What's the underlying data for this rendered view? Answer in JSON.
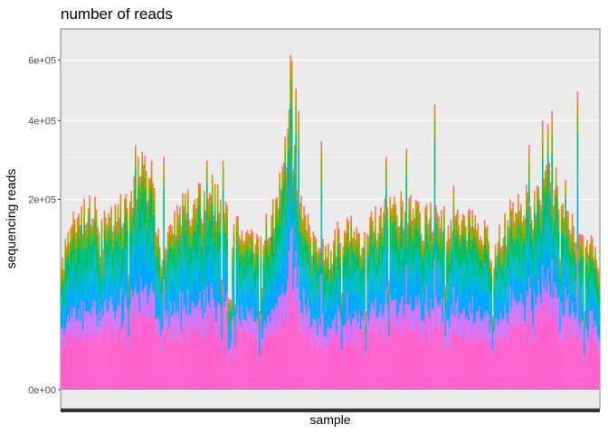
{
  "chart_data": {
    "type": "bar",
    "stacked": true,
    "title": "number of reads",
    "xlabel": "sample",
    "ylabel": "sequencing reads",
    "y_scale": "sqrt",
    "ylim": [
      0,
      680000
    ],
    "y_ticks": [
      0,
      200000,
      400000,
      600000
    ],
    "y_tick_labels": [
      "0e+00",
      "2e+05",
      "4e+05",
      "6e+05"
    ],
    "x_tick_labels_visible": false,
    "grid": true,
    "legend": "none",
    "n_samples": 400,
    "series_colors": [
      "#FF61CC",
      "#C77CFF",
      "#00A9FF",
      "#00BFC4",
      "#00BE67",
      "#7CAE00",
      "#CD9600",
      "#F8766D"
    ],
    "profile": [
      [
        0,
        80000
      ],
      [
        3,
        115000
      ],
      [
        8,
        160000
      ],
      [
        14,
        170000
      ],
      [
        20,
        185000
      ],
      [
        25,
        190000
      ],
      [
        28,
        125000
      ],
      [
        33,
        160000
      ],
      [
        40,
        175000
      ],
      [
        47,
        190000
      ],
      [
        55,
        240000
      ],
      [
        60,
        280000
      ],
      [
        65,
        230000
      ],
      [
        70,
        190000
      ],
      [
        75,
        95000
      ],
      [
        82,
        145000
      ],
      [
        90,
        185000
      ],
      [
        97,
        200000
      ],
      [
        104,
        210000
      ],
      [
        112,
        225000
      ],
      [
        120,
        185000
      ],
      [
        128,
        150000
      ],
      [
        135,
        135000
      ],
      [
        142,
        120000
      ],
      [
        150,
        145000
      ],
      [
        158,
        180000
      ],
      [
        163,
        240000
      ],
      [
        167,
        370000
      ],
      [
        171,
        380000
      ],
      [
        175,
        250000
      ],
      [
        180,
        185000
      ],
      [
        185,
        140000
      ],
      [
        190,
        115000
      ],
      [
        196,
        105000
      ],
      [
        202,
        115000
      ],
      [
        208,
        155000
      ],
      [
        214,
        160000
      ],
      [
        220,
        120000
      ],
      [
        226,
        130000
      ],
      [
        232,
        165000
      ],
      [
        240,
        185000
      ],
      [
        248,
        195000
      ],
      [
        255,
        190000
      ],
      [
        262,
        175000
      ],
      [
        270,
        165000
      ],
      [
        278,
        170000
      ],
      [
        286,
        160000
      ],
      [
        294,
        155000
      ],
      [
        302,
        160000
      ],
      [
        310,
        155000
      ],
      [
        316,
        135000
      ],
      [
        320,
        95000
      ],
      [
        326,
        135000
      ],
      [
        332,
        170000
      ],
      [
        338,
        190000
      ],
      [
        344,
        200000
      ],
      [
        350,
        190000
      ],
      [
        356,
        210000
      ],
      [
        362,
        255000
      ],
      [
        368,
        250000
      ],
      [
        374,
        210000
      ],
      [
        380,
        165000
      ],
      [
        385,
        135000
      ],
      [
        390,
        120000
      ],
      [
        395,
        110000
      ],
      [
        399,
        105000
      ]
    ],
    "fractions": [
      0.07,
      0.06,
      0.09,
      0.1,
      0.12,
      0.07,
      0.05,
      0.03
    ],
    "spikes": [
      [
        55,
        330000
      ],
      [
        57,
        300000
      ],
      [
        67,
        290000
      ],
      [
        76,
        300000
      ],
      [
        108,
        290000
      ],
      [
        120,
        290000
      ],
      [
        170,
        620000
      ],
      [
        171,
        600000
      ],
      [
        174,
        500000
      ],
      [
        176,
        430000
      ],
      [
        193,
        340000
      ],
      [
        241,
        300000
      ],
      [
        256,
        320000
      ],
      [
        277,
        450000
      ],
      [
        291,
        230000
      ],
      [
        347,
        330000
      ],
      [
        357,
        400000
      ],
      [
        361,
        390000
      ],
      [
        364,
        430000
      ],
      [
        383,
        490000
      ]
    ]
  }
}
